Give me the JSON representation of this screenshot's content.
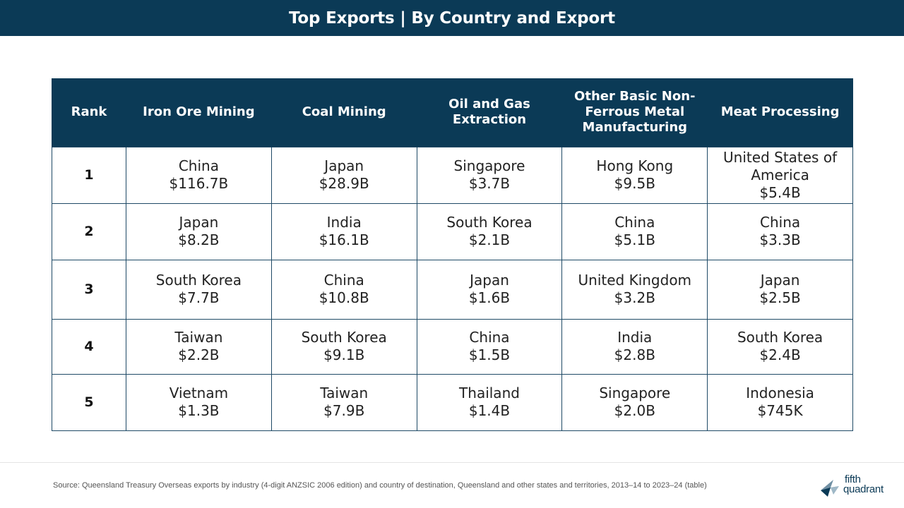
{
  "header": {
    "title": "Top Exports | By Country and Export"
  },
  "table": {
    "columns": [
      "Rank",
      "Iron Ore Mining",
      "Coal Mining",
      "Oil and Gas Extraction",
      "Other Basic Non-Ferrous Metal Manufacturing",
      "Meat Processing"
    ],
    "rows": [
      {
        "rank": "1",
        "cells": [
          {
            "country": "China",
            "value": "$116.7B"
          },
          {
            "country": "Japan",
            "value": "$28.9B"
          },
          {
            "country": "Singapore",
            "value": "$3.7B"
          },
          {
            "country": "Hong Kong",
            "value": "$9.5B"
          },
          {
            "country": "United States of America",
            "value": "$5.4B"
          }
        ]
      },
      {
        "rank": "2",
        "cells": [
          {
            "country": "Japan",
            "value": "$8.2B"
          },
          {
            "country": "India",
            "value": "$16.1B"
          },
          {
            "country": "South Korea",
            "value": "$2.1B"
          },
          {
            "country": "China",
            "value": "$5.1B"
          },
          {
            "country": "China",
            "value": "$3.3B"
          }
        ]
      },
      {
        "rank": "3",
        "cells": [
          {
            "country": "South Korea",
            "value": "$7.7B"
          },
          {
            "country": "China",
            "value": "$10.8B"
          },
          {
            "country": "Japan",
            "value": "$1.6B"
          },
          {
            "country": "United Kingdom",
            "value": "$3.2B"
          },
          {
            "country": "Japan",
            "value": "$2.5B"
          }
        ]
      },
      {
        "rank": "4",
        "cells": [
          {
            "country": "Taiwan",
            "value": "$2.2B"
          },
          {
            "country": "South Korea",
            "value": "$9.1B"
          },
          {
            "country": "China",
            "value": "$1.5B"
          },
          {
            "country": "India",
            "value": "$2.8B"
          },
          {
            "country": "South Korea",
            "value": "$2.4B"
          }
        ]
      },
      {
        "rank": "5",
        "cells": [
          {
            "country": "Vietnam",
            "value": "$1.3B"
          },
          {
            "country": "Taiwan",
            "value": "$7.9B"
          },
          {
            "country": "Thailand",
            "value": "$1.4B"
          },
          {
            "country": "Singapore",
            "value": "$2.0B"
          },
          {
            "country": "Indonesia",
            "value": "$745K"
          }
        ]
      }
    ]
  },
  "footer": {
    "source": "Source: Queensland Treasury Overseas exports by industry (4-digit ANZSIC 2006 edition) and country of destination, Queensland and other states and territories, 2013–14 to 2023–24 (table)",
    "logo": {
      "line1": "fifth",
      "line2": "quadrant",
      "icon": "arrow-logo-icon"
    }
  },
  "colors": {
    "navy": "#0b3a56",
    "border": "#1f4a66",
    "text": "#222222"
  }
}
